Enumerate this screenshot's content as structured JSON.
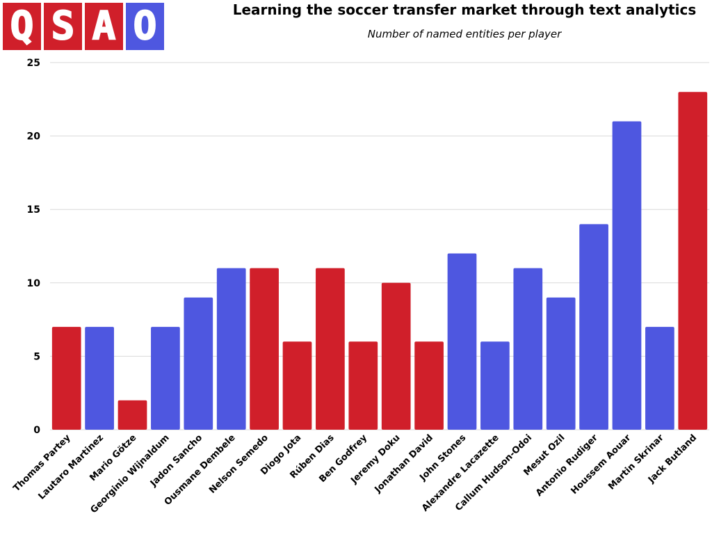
{
  "logo": {
    "letters": [
      "Q",
      "S",
      "A",
      "O"
    ],
    "colors": [
      "#d01f2a",
      "#d01f2a",
      "#d01f2a",
      "#4e57e0"
    ]
  },
  "chart_data": {
    "type": "bar",
    "title": "Learning the soccer transfer market through text analytics",
    "subtitle": "Number of named entities per player",
    "categories": [
      "Thomas Partey",
      "Lautaro Martinez",
      "Mario Götze",
      "Georginio Wijnaldum",
      "Jadon Sancho",
      "Ousmane Dembele",
      "Nelson Semedo",
      "Diogo Jota",
      "Rúben Dias",
      "Ben Godfrey",
      "Jeremy Doku",
      "Jonathan David",
      "John Stones",
      "Alexandre Lacazette",
      "Callum Hudson-Odoi",
      "Mesut Ozil",
      "Antonio Rudiger",
      "Houssem Aouar",
      "Martin Skrinar",
      "Jack Butland"
    ],
    "values": [
      7,
      7,
      2,
      7,
      9,
      11,
      11,
      6,
      11,
      6,
      10,
      6,
      12,
      6,
      11,
      9,
      14,
      21,
      7,
      23
    ],
    "bar_colors": [
      "#d01f2a",
      "#4e57e0",
      "#d01f2a",
      "#4e57e0",
      "#4e57e0",
      "#4e57e0",
      "#d01f2a",
      "#d01f2a",
      "#d01f2a",
      "#d01f2a",
      "#d01f2a",
      "#d01f2a",
      "#4e57e0",
      "#4e57e0",
      "#4e57e0",
      "#4e57e0",
      "#4e57e0",
      "#4e57e0",
      "#4e57e0",
      "#d01f2a"
    ],
    "yticks": [
      0,
      5,
      10,
      15,
      20,
      25
    ],
    "ylim": [
      0,
      25
    ],
    "xlabel": "",
    "ylabel": "",
    "grid": true
  }
}
